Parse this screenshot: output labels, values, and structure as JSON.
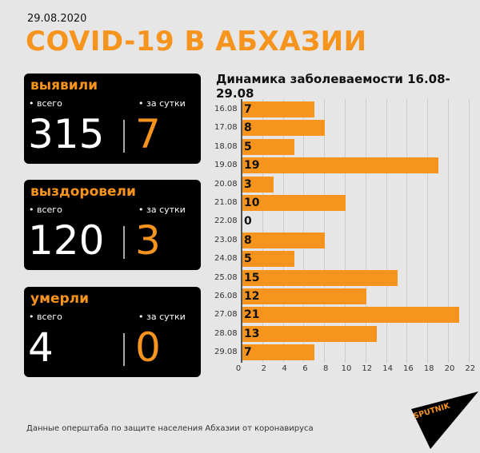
{
  "header": {
    "date": "29.08.2020",
    "title": "COVID-19 В АБХАЗИИ"
  },
  "cards": [
    {
      "label": "выявили",
      "total_label": "• всего",
      "daily_label": "• за сутки",
      "total": "315",
      "daily": "7"
    },
    {
      "label": "выздоровели",
      "total_label": "• всего",
      "daily_label": "• за сутки",
      "total": "120",
      "daily": "3"
    },
    {
      "label": "умерли",
      "total_label": "• всего",
      "daily_label": "• за сутки",
      "total": "4",
      "daily": "0"
    }
  ],
  "chart_title": "Динамика заболеваемости 16.08-29.08",
  "chart_data": {
    "type": "bar",
    "orientation": "horizontal",
    "title": "Динамика заболеваемости 16.08-29.08",
    "categories": [
      "16.08",
      "17.08",
      "18.08",
      "19.08",
      "20.08",
      "21.08",
      "22.08",
      "23.08",
      "24.08",
      "25.08",
      "26.08",
      "27.08",
      "28.08",
      "29.08"
    ],
    "values": [
      7,
      8,
      5,
      19,
      3,
      10,
      0,
      8,
      5,
      15,
      12,
      21,
      13,
      7
    ],
    "xlabel": "",
    "ylabel": "",
    "xlim": [
      0,
      22
    ],
    "xticks": [
      "0",
      "2",
      "4",
      "6",
      "8",
      "10",
      "12",
      "14",
      "16",
      "18",
      "20",
      "22"
    ],
    "grid": true,
    "bar_color": "#f7941d"
  },
  "footer": {
    "source": "Данные оперштаба по защите населения Абхазии от коронавируса",
    "logo": "SPUTNIK"
  },
  "colors": {
    "accent": "#f7941d",
    "card_bg": "#000000",
    "background": "#e6e6e6"
  }
}
